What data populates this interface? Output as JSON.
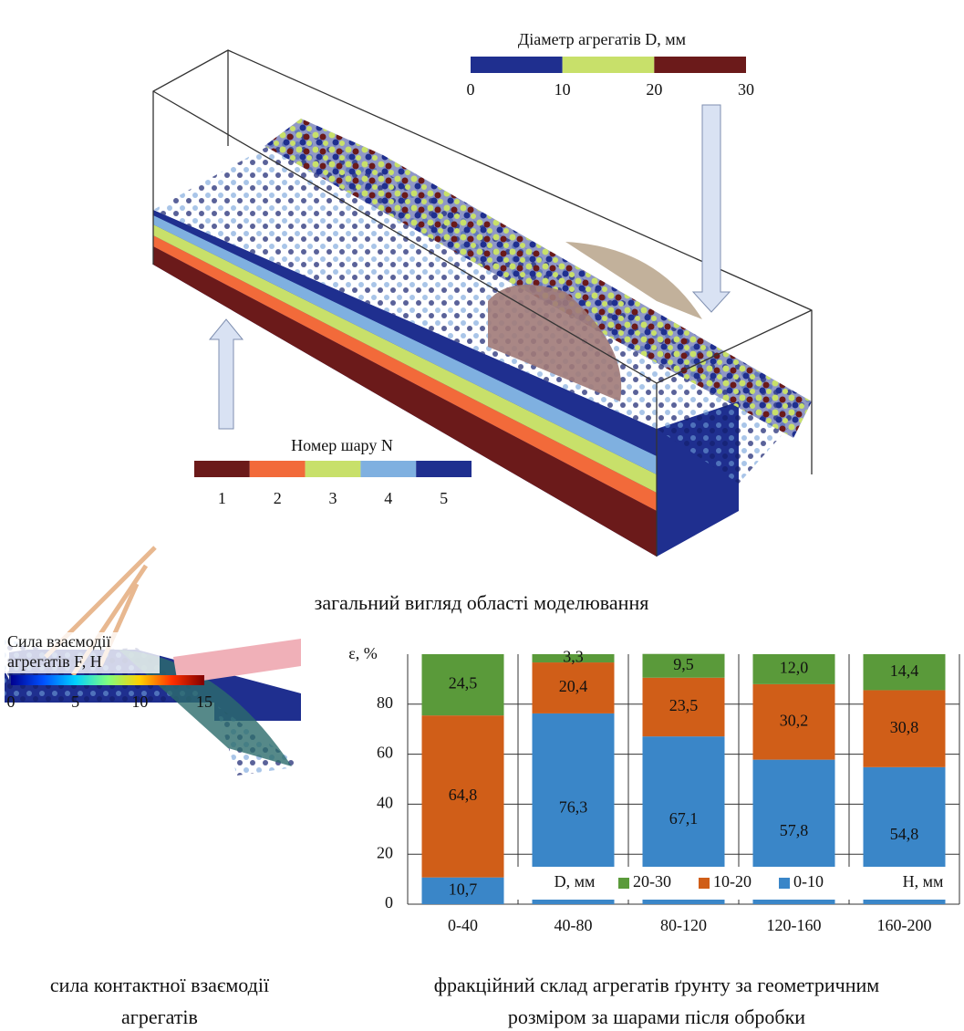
{
  "top_panel": {
    "caption": "загальний вигляд області моделювання",
    "diameter_legend": {
      "title": "Діаметр агрегатів D, мм",
      "lim": [
        0,
        30
      ],
      "ticks": [
        0,
        10,
        20,
        30
      ],
      "colors": [
        "#1f2f8f",
        "#c8e06a",
        "#6b1a1a"
      ]
    },
    "layer_legend": {
      "title": "Номер шару N",
      "labels": [
        "1",
        "2",
        "3",
        "4",
        "5"
      ],
      "colors": [
        "#6b1a1a",
        "#f26a3a",
        "#c8e06a",
        "#7fb0e0",
        "#1f2f8f"
      ]
    }
  },
  "left_panel": {
    "caption_lines": [
      "сила контактної взаємодії",
      "агрегатів"
    ],
    "colorbar": {
      "title_lines": [
        "Сила взаємодії",
        "агрегатів F, Н"
      ],
      "lim": [
        0,
        15
      ],
      "ticks": [
        0,
        5,
        10,
        15
      ]
    }
  },
  "right_caption_lines": [
    "фракційний склад агрегатів ґрунту за геометричним",
    "розміром за шарами після обробки"
  ],
  "chart_data": {
    "type": "stacked-bar",
    "y_label": "ε, %",
    "x_label": "Н, мм",
    "legend_title": "D, мм",
    "categories": [
      "0-40",
      "40-80",
      "80-120",
      "120-160",
      "160-200"
    ],
    "series": [
      {
        "name": "0-10",
        "color": "#3a86c8",
        "values": [
          10.7,
          76.3,
          67.1,
          57.8,
          54.8
        ],
        "value_labels": [
          "10,7",
          "76,3",
          "67,1",
          "57,8",
          "54,8"
        ]
      },
      {
        "name": "10-20",
        "color": "#d05e18",
        "values": [
          64.8,
          20.4,
          23.5,
          30.2,
          30.8
        ],
        "value_labels": [
          "64,8",
          "20,4",
          "23,5",
          "30,2",
          "30,8"
        ]
      },
      {
        "name": "20-30",
        "color": "#5a9a3a",
        "values": [
          24.5,
          3.3,
          9.5,
          12.0,
          14.4
        ],
        "value_labels": [
          "24,5",
          "3,3",
          "9,5",
          "12,0",
          "14,4"
        ]
      }
    ],
    "ylim": [
      0,
      100
    ],
    "yticks": [
      0,
      20,
      40,
      60,
      80
    ],
    "grid": true
  }
}
